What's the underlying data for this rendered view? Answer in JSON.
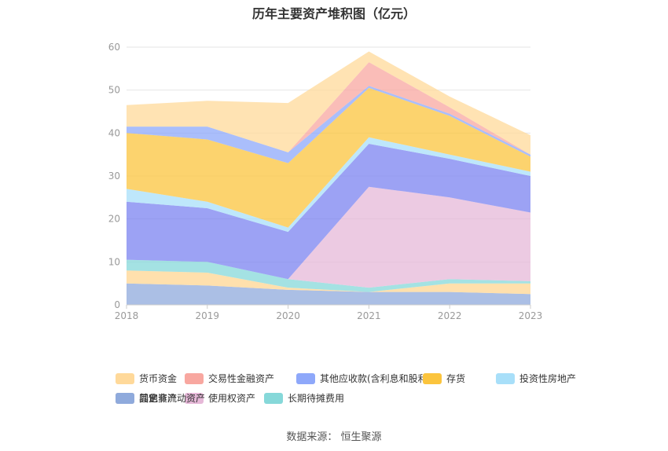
{
  "title": "历年主要资产堆积图（亿元）",
  "source": "数据来源：  恒生聚源",
  "chart_data": {
    "type": "area",
    "stacked": true,
    "x": [
      "2018",
      "2019",
      "2020",
      "2021",
      "2022",
      "2023"
    ],
    "ylim": [
      0,
      60
    ],
    "yticks": [
      0,
      10,
      20,
      30,
      40,
      50,
      60
    ],
    "grid": true,
    "legend_position": "bottom",
    "series": [
      {
        "name": "其它",
        "color": "#8faadc",
        "values": [
          5.0,
          4.5,
          3.5,
          3.0,
          3.0,
          2.5
        ]
      },
      {
        "name": "其他非流动资产",
        "color": "#ffd591",
        "values": [
          3.0,
          3.0,
          0.5,
          0.0,
          2.0,
          2.5
        ]
      },
      {
        "name": "长期待摊费用",
        "color": "#86d8d9",
        "values": [
          2.5,
          2.5,
          2.0,
          1.0,
          1.0,
          0.5
        ]
      },
      {
        "name": "使用权资产",
        "color": "#e6b8d8",
        "values": [
          0.0,
          0.0,
          0.0,
          23.5,
          19.0,
          16.0
        ]
      },
      {
        "name": "固定资产",
        "color": "#7b83f0",
        "values": [
          13.5,
          12.5,
          11.0,
          10.0,
          9.0,
          8.5
        ]
      },
      {
        "name": "投资性房地产",
        "color": "#a8dff9",
        "values": [
          3.0,
          1.5,
          1.0,
          1.5,
          1.0,
          1.0
        ]
      },
      {
        "name": "存货",
        "color": "#fbc43d",
        "values": [
          13.0,
          14.5,
          15.0,
          11.5,
          9.0,
          3.5
        ]
      },
      {
        "name": "其他应收款(含利息和股利)",
        "color": "#8ea8fa",
        "values": [
          1.5,
          3.0,
          2.5,
          0.5,
          0.5,
          0.5
        ]
      },
      {
        "name": "交易性金融资产",
        "color": "#f8a7a0",
        "values": [
          0.0,
          0.0,
          0.0,
          5.5,
          1.5,
          0.0
        ]
      },
      {
        "name": "货币资金",
        "color": "#ffd99a",
        "values": [
          5.0,
          6.0,
          11.5,
          2.5,
          2.5,
          4.5
        ]
      }
    ]
  },
  "legend": [
    {
      "label": "货币资金",
      "color": "#ffd99a"
    },
    {
      "label": "交易性金融资产",
      "color": "#f8a7a0"
    },
    {
      "label": "其他应收款(含利息和股利)",
      "color": "#8ea8fa"
    },
    {
      "label": "存货",
      "color": "#fbc43d"
    },
    {
      "label": "投资性房地产",
      "color": "#a8dff9"
    },
    {
      "label": "固定资产",
      "color": "#7b83f0"
    },
    {
      "label": "使用权资产",
      "color": "#e6b8d8"
    },
    {
      "label": "长期待摊费用",
      "color": "#86d8d9"
    },
    {
      "label": "其他非流动资产",
      "color": "#ffd591"
    },
    {
      "label": "其它",
      "color": "#8faadc"
    }
  ]
}
